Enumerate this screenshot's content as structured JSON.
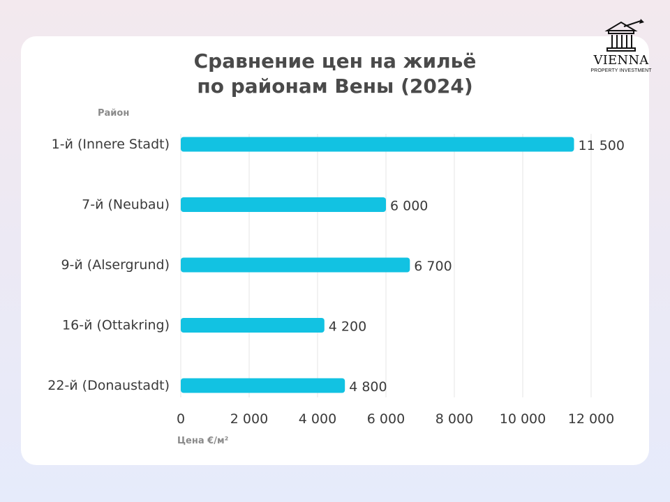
{
  "brand": {
    "name": "VIENNA",
    "tagline": "PROPERTY INVESTMENT",
    "icon": "building-columns-arrow-icon"
  },
  "colors": {
    "bar": "#12c2e2",
    "grid": "#e4e4e4",
    "text": "#3a3a3a"
  },
  "chart_data": {
    "type": "bar",
    "orientation": "horizontal",
    "title": [
      "Сравнение цен на жильё",
      "по районам Вены (2024)"
    ],
    "ylabel": "Район",
    "xlabel": "Цена €/м²",
    "categories": [
      "1-й (Innere Stadt)",
      "7-й (Neubau)",
      "9-й (Alsergrund)",
      "16-й (Ottakring)",
      "22-й (Donaustadt)"
    ],
    "values": [
      11500,
      6000,
      6700,
      4200,
      4800
    ],
    "value_labels": [
      "11 500",
      "6 000",
      "6 700",
      "4 200",
      "4 800"
    ],
    "xlim": [
      0,
      12000
    ],
    "x_ticks": [
      0,
      2000,
      4000,
      6000,
      8000,
      10000,
      12000
    ],
    "x_tick_labels": [
      "0",
      "2 000",
      "4 000",
      "6 000",
      "8 000",
      "10 000",
      "12 000"
    ],
    "grid": "vertical"
  }
}
